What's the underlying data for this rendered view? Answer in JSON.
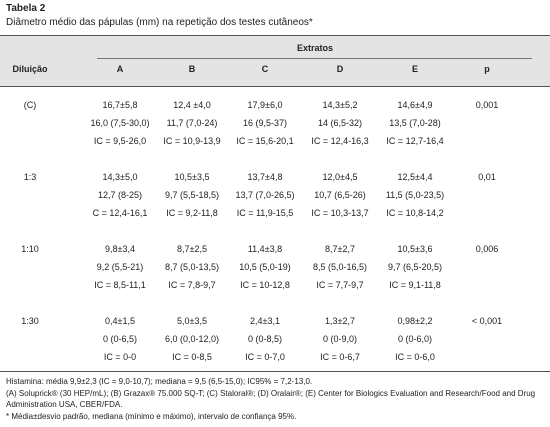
{
  "header": {
    "title": "Tabela 2",
    "subtitle": "Diâmetro médio das pápulas (mm) na repetição dos testes cutâneos*"
  },
  "table": {
    "group_header": "Extratos",
    "columns": [
      "Diluição",
      "A",
      "B",
      "C",
      "D",
      "E",
      "p"
    ],
    "rows": [
      {
        "dilution": "(C)",
        "cells": [
          [
            "16,7±5,8",
            "16,0 (7,5-30,0)",
            "IC = 9,5-26,0"
          ],
          [
            "12,4 ±4,0",
            "11,7 (7,0-24)",
            "IC = 10,9-13,9"
          ],
          [
            "17,9±6,0",
            "16 (9,5-37)",
            "IC = 15,6-20,1"
          ],
          [
            "14,3±5,2",
            "14 (6,5-32)",
            "IC = 12,4-16,3"
          ],
          [
            "14,6±4,9",
            "13,5 (7,0-28)",
            "IC = 12,7-16,4"
          ]
        ],
        "p": "0,001"
      },
      {
        "dilution": "1:3",
        "cells": [
          [
            "14,3±5,0",
            "12,7 (8-25)",
            "C = 12,4-16,1"
          ],
          [
            "10,5±3,5",
            "9,7 (5,5-18,5)",
            "IC = 9,2-11,8"
          ],
          [
            "13,7±4,8",
            "13,7 (7,0-26,5)",
            "IC = 11,9-15,5"
          ],
          [
            "12,0±4,5",
            "10,7 (6,5-26)",
            "IC = 10,3-13,7"
          ],
          [
            "12,5±4,4",
            "11,5 (5,0-23,5)",
            "IC = 10,8-14,2"
          ]
        ],
        "p": "0,01"
      },
      {
        "dilution": "1:10",
        "cells": [
          [
            "9,8±3,4",
            "9,2 (5,5-21)",
            "IC = 8,5-11,1"
          ],
          [
            "8,7±2,5",
            "8,7 (5,0-13,5)",
            "IC = 7,8-9,7"
          ],
          [
            "11,4±3,8",
            "10,5 (5,0-19)",
            "IC = 10-12,8"
          ],
          [
            "8,7±2,7",
            "8,5 (5,0-16,5)",
            "IC = 7,7-9,7"
          ],
          [
            "10,5±3,6",
            "9,7 (6,5-20,5)",
            "IC = 9,1-11,8"
          ]
        ],
        "p": "0,006"
      },
      {
        "dilution": "1:30",
        "cells": [
          [
            "0,4±1,5",
            "0 (0-6,5)",
            "IC = 0-0"
          ],
          [
            "5,0±3,5",
            "6,0 (0,0-12,0)",
            "IC = 0-8,5"
          ],
          [
            "2,4±3,1",
            "0 (0-8,5)",
            "IC = 0-7,0"
          ],
          [
            "1,3±2,7",
            "0 (0-9,0)",
            "IC = 0-6,7"
          ],
          [
            "0,98±2,2",
            "0 (0-6,0)",
            "IC = 0-6,0"
          ]
        ],
        "p": "< 0,001"
      }
    ]
  },
  "footnotes": [
    "Histamina: média 9,9±2,3 (IC = 9,0-10,7); mediana = 9,5 (6,5-15,0); IC95% = 7,2-13,0.",
    "(A) Soluprick® (30 HEP/mL); (B) Grazax® 75.000 SQ-T; (C) Staloral®; (D) Oralair®; (E) Center for Biologics Evaluation and Research/Food and Drug Administration USA, CBER/FDA.",
    "* Média±desvio padrão, mediana (mínimo e máximo), intervalo de confiança 95%."
  ]
}
